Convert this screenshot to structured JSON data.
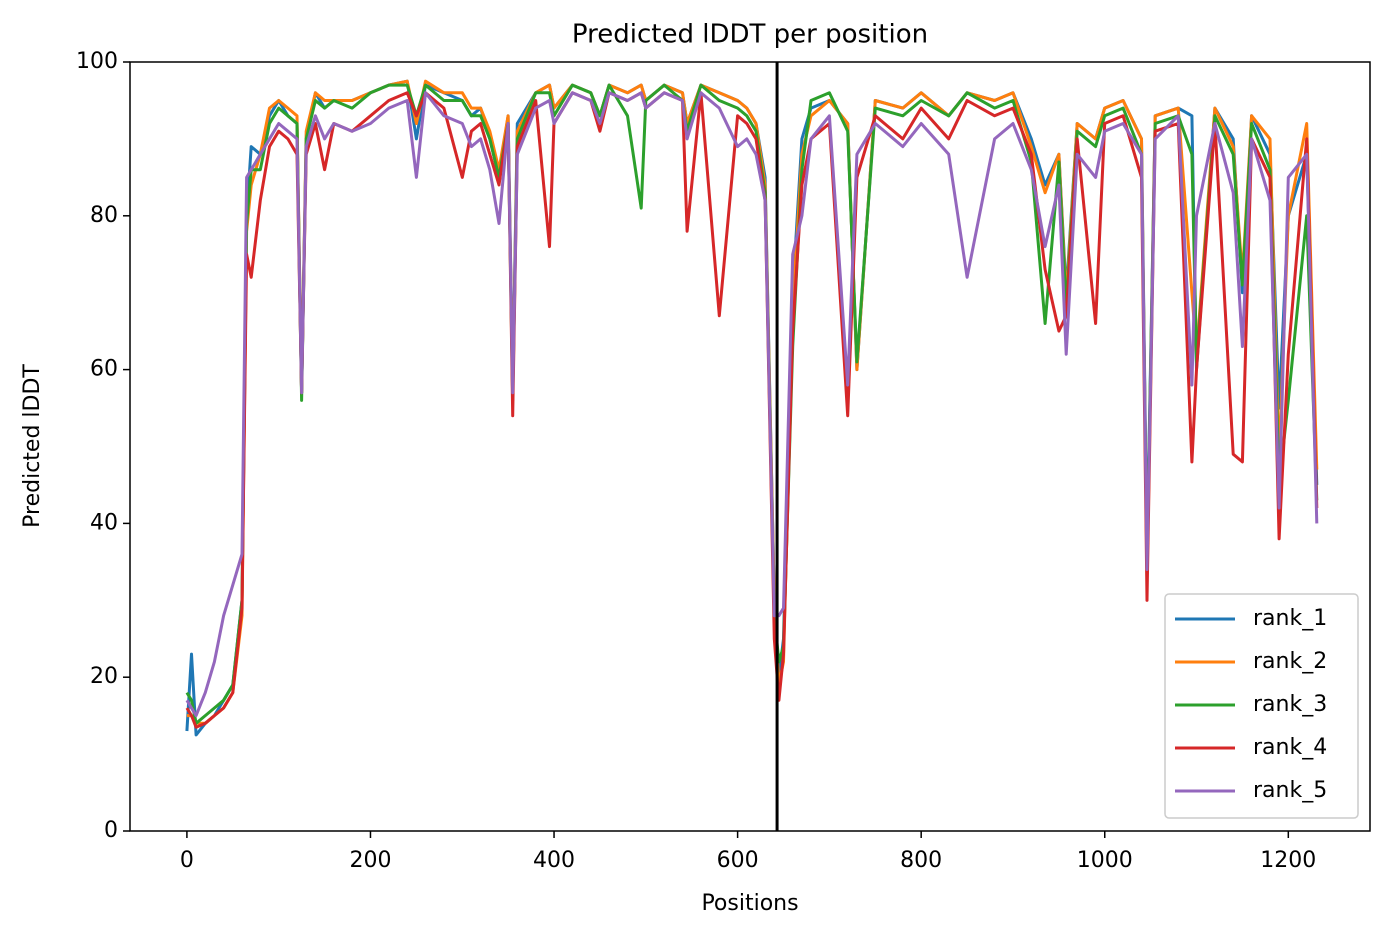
{
  "chart_data": {
    "type": "line",
    "title": "Predicted lDDT per position",
    "xlabel": "Positions",
    "ylabel": "Predicted lDDT",
    "xlim": [
      -62,
      1289
    ],
    "ylim": [
      0,
      100
    ],
    "xticks": [
      0,
      200,
      400,
      600,
      800,
      1000,
      1200
    ],
    "yticks": [
      0,
      20,
      40,
      60,
      80,
      100
    ],
    "vline": 643,
    "vline_color": "#000000",
    "legend": "lower right",
    "x": [
      0,
      5,
      10,
      20,
      30,
      40,
      50,
      60,
      65,
      70,
      80,
      90,
      100,
      110,
      120,
      125,
      130,
      140,
      150,
      160,
      180,
      200,
      220,
      240,
      250,
      260,
      280,
      300,
      310,
      320,
      330,
      340,
      350,
      355,
      360,
      380,
      395,
      400,
      420,
      440,
      450,
      460,
      480,
      495,
      500,
      520,
      540,
      545,
      560,
      580,
      600,
      610,
      620,
      630,
      640,
      645,
      650,
      660,
      670,
      680,
      700,
      720,
      730,
      750,
      780,
      800,
      830,
      850,
      880,
      900,
      920,
      935,
      950,
      958,
      970,
      990,
      1000,
      1020,
      1040,
      1046,
      1055,
      1080,
      1095,
      1100,
      1120,
      1140,
      1150,
      1160,
      1180,
      1190,
      1200,
      1220,
      1231
    ],
    "series": [
      {
        "name": "rank_1",
        "color": "#1f77b4",
        "values": [
          13,
          23,
          12.5,
          14,
          15,
          17,
          19,
          30,
          80,
          89,
          88,
          93,
          95,
          93,
          92,
          57,
          90,
          96,
          94,
          95,
          95,
          96,
          97,
          97.5,
          90,
          97,
          96,
          95,
          93,
          94,
          90,
          85,
          93,
          58,
          92,
          96,
          97,
          94,
          97,
          96,
          93,
          97,
          96,
          97,
          95,
          97,
          96,
          92,
          97,
          96,
          95,
          94,
          92,
          85,
          30,
          20,
          25,
          70,
          90,
          94,
          95,
          92,
          60,
          95,
          94,
          96,
          93,
          96,
          95,
          96,
          90,
          84,
          88,
          70,
          92,
          90,
          94,
          95,
          90,
          36,
          93,
          94,
          93,
          60,
          94,
          90,
          70,
          93,
          88,
          55,
          80,
          88,
          45
        ]
      },
      {
        "name": "rank_2",
        "color": "#ff7f0e",
        "values": [
          15,
          15,
          14,
          14,
          15,
          16,
          18,
          28,
          78,
          84,
          88,
          94,
          95,
          94,
          93,
          57,
          91,
          96,
          95,
          95,
          95,
          96,
          97,
          97.5,
          92,
          97.5,
          96,
          96,
          94,
          94,
          91,
          86,
          93,
          57,
          91,
          96,
          97,
          94,
          97,
          96,
          93,
          97,
          96,
          97,
          95,
          97,
          96,
          92,
          97,
          96,
          95,
          94,
          92,
          84,
          30,
          19,
          22,
          68,
          88,
          93,
          95,
          92,
          60,
          95,
          94,
          96,
          93,
          96,
          95,
          96,
          89,
          83,
          88,
          69,
          92,
          90,
          94,
          95,
          90,
          33,
          93,
          94,
          70,
          62,
          94,
          89,
          72,
          93,
          90,
          48,
          80,
          92,
          47
        ]
      },
      {
        "name": "rank_3",
        "color": "#2ca02c",
        "values": [
          18,
          17,
          14,
          15,
          16,
          17,
          19,
          30,
          79,
          86,
          86,
          92,
          94,
          93,
          92,
          56,
          90,
          95,
          94,
          95,
          94,
          96,
          97,
          97,
          93,
          97,
          95,
          95,
          93,
          93,
          90,
          85,
          92,
          56,
          90,
          96,
          96,
          93,
          97,
          96,
          93,
          97,
          93,
          81,
          95,
          97,
          95,
          91,
          97,
          95,
          94,
          93,
          91,
          83,
          28,
          22,
          24,
          63,
          86,
          95,
          96,
          91,
          61,
          94,
          93,
          95,
          93,
          96,
          94,
          95,
          87,
          66,
          87,
          68,
          91,
          89,
          93,
          94,
          88,
          35,
          92,
          93,
          88,
          61,
          93,
          88,
          71,
          92,
          86,
          45,
          56,
          80,
          43
        ]
      },
      {
        "name": "rank_4",
        "color": "#d62728",
        "values": [
          16,
          15,
          13.5,
          14,
          15,
          16,
          18,
          29,
          75,
          72,
          82,
          89,
          91,
          90,
          88,
          57,
          88,
          92,
          86,
          92,
          91,
          93,
          95,
          96,
          93,
          96,
          94,
          85,
          91,
          92,
          88,
          84,
          92,
          54,
          89,
          95,
          76,
          92,
          96,
          95,
          91,
          96,
          95,
          96,
          94,
          96,
          95,
          78,
          96,
          67,
          93,
          92,
          90,
          82,
          25,
          17,
          23,
          65,
          84,
          90,
          92,
          54,
          85,
          93,
          90,
          94,
          90,
          95,
          93,
          94,
          88,
          73,
          65,
          67,
          90,
          66,
          92,
          93,
          85,
          30,
          91,
          92,
          48,
          60,
          92,
          49,
          48,
          90,
          85,
          38,
          62,
          90,
          42
        ]
      },
      {
        "name": "rank_5",
        "color": "#9467bd",
        "values": [
          17,
          16,
          15,
          18,
          22,
          28,
          32,
          36,
          85,
          86,
          88,
          90,
          92,
          91,
          90,
          57,
          89,
          93,
          90,
          92,
          91,
          92,
          94,
          95,
          85,
          96,
          93,
          92,
          89,
          90,
          86,
          79,
          92,
          57,
          88,
          94,
          95,
          92,
          96,
          95,
          92,
          96,
          95,
          96,
          94,
          96,
          95,
          90,
          96,
          94,
          89,
          90,
          88,
          82,
          28,
          28,
          29,
          75,
          80,
          90,
          93,
          58,
          88,
          92,
          89,
          92,
          88,
          72,
          90,
          92,
          86,
          76,
          84,
          62,
          88,
          85,
          91,
          92,
          88,
          34,
          90,
          93,
          58,
          80,
          92,
          83,
          63,
          90,
          82,
          42,
          85,
          88,
          40
        ]
      }
    ]
  }
}
